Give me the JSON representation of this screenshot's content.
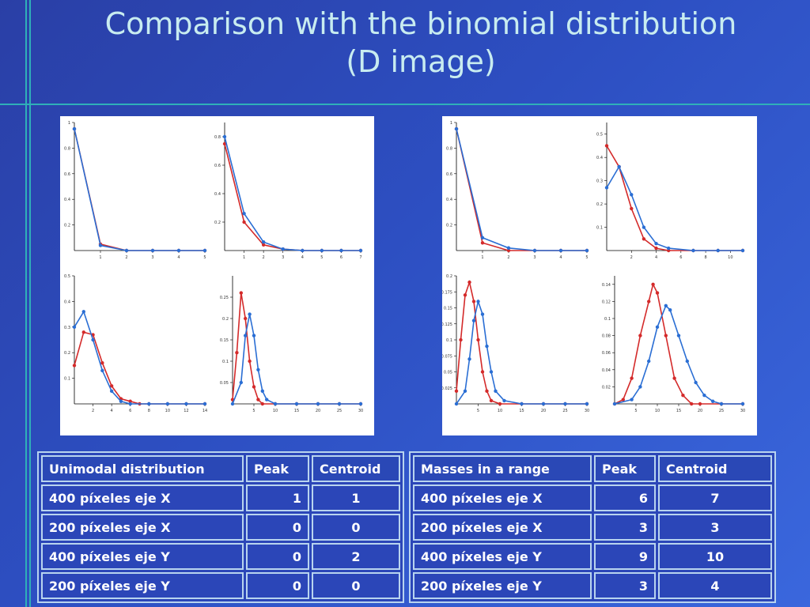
{
  "slide": {
    "title_line1": "Comparison with the binomial distribution",
    "title_line2": "(D image)"
  },
  "colors": {
    "binomial": "#d42a2a",
    "measured": "#2a6ed4"
  },
  "chart_data": [
    {
      "type": "line",
      "xticks": [
        "1",
        "2",
        "3",
        "4",
        "5"
      ],
      "yticks": [
        "0.2",
        "0.4",
        "0.6",
        "0.8",
        "1"
      ],
      "xlim": [
        0,
        5
      ],
      "ylim": [
        0,
        1
      ],
      "series": [
        {
          "values": [
            [
              0,
              0.95
            ],
            [
              1,
              0.05
            ],
            [
              2,
              0.0
            ],
            [
              3,
              0.0
            ],
            [
              4,
              0.0
            ],
            [
              5,
              0.0
            ]
          ]
        },
        {
          "values": [
            [
              0,
              0.95
            ],
            [
              1,
              0.04
            ],
            [
              2,
              0.0
            ],
            [
              3,
              0.0
            ],
            [
              4,
              0.0
            ],
            [
              5,
              0.0
            ]
          ]
        }
      ]
    },
    {
      "type": "line",
      "xticks": [
        "1",
        "2",
        "3",
        "4",
        "5",
        "6",
        "7"
      ],
      "yticks": [
        "0.2",
        "0.4",
        "0.6",
        "0.8"
      ],
      "xlim": [
        0,
        7
      ],
      "ylim": [
        0,
        0.9
      ],
      "series": [
        {
          "values": [
            [
              0,
              0.75
            ],
            [
              1,
              0.2
            ],
            [
              2,
              0.04
            ],
            [
              3,
              0.01
            ],
            [
              4,
              0
            ],
            [
              5,
              0
            ],
            [
              6,
              0
            ],
            [
              7,
              0
            ]
          ]
        },
        {
          "values": [
            [
              0,
              0.8
            ],
            [
              1,
              0.26
            ],
            [
              2,
              0.06
            ],
            [
              3,
              0.01
            ],
            [
              4,
              0
            ],
            [
              5,
              0
            ],
            [
              6,
              0
            ],
            [
              7,
              0
            ]
          ]
        }
      ]
    },
    {
      "type": "line",
      "xticks": [
        "2",
        "4",
        "6",
        "8",
        "10",
        "12",
        "14"
      ],
      "yticks": [
        "0.1",
        "0.2",
        "0.3",
        "0.4",
        "0.5"
      ],
      "xlim": [
        0,
        14
      ],
      "ylim": [
        0,
        0.5
      ],
      "series": [
        {
          "values": [
            [
              0,
              0.15
            ],
            [
              1,
              0.28
            ],
            [
              2,
              0.27
            ],
            [
              3,
              0.16
            ],
            [
              4,
              0.07
            ],
            [
              5,
              0.02
            ],
            [
              6,
              0.01
            ],
            [
              7,
              0
            ],
            [
              8,
              0
            ],
            [
              10,
              0
            ],
            [
              12,
              0
            ],
            [
              14,
              0
            ]
          ]
        },
        {
          "values": [
            [
              0,
              0.3
            ],
            [
              1,
              0.36
            ],
            [
              2,
              0.25
            ],
            [
              3,
              0.13
            ],
            [
              4,
              0.05
            ],
            [
              5,
              0.01
            ],
            [
              6,
              0
            ],
            [
              8,
              0
            ],
            [
              10,
              0
            ],
            [
              12,
              0
            ],
            [
              14,
              0
            ]
          ]
        }
      ]
    },
    {
      "type": "line",
      "xticks": [
        "5",
        "10",
        "15",
        "20",
        "25",
        "30"
      ],
      "yticks": [
        "0.05",
        "0.1",
        "0.15",
        "0.2",
        "0.25"
      ],
      "xlim": [
        0,
        30
      ],
      "ylim": [
        0,
        0.3
      ],
      "series": [
        {
          "values": [
            [
              0,
              0.01
            ],
            [
              1,
              0.12
            ],
            [
              2,
              0.26
            ],
            [
              3,
              0.2
            ],
            [
              4,
              0.1
            ],
            [
              5,
              0.04
            ],
            [
              6,
              0.01
            ],
            [
              7,
              0
            ],
            [
              10,
              0
            ],
            [
              15,
              0
            ],
            [
              20,
              0
            ],
            [
              25,
              0
            ],
            [
              30,
              0
            ]
          ]
        },
        {
          "values": [
            [
              0,
              0
            ],
            [
              2,
              0.05
            ],
            [
              3,
              0.16
            ],
            [
              4,
              0.21
            ],
            [
              5,
              0.16
            ],
            [
              6,
              0.08
            ],
            [
              7,
              0.03
            ],
            [
              8,
              0.01
            ],
            [
              10,
              0
            ],
            [
              15,
              0
            ],
            [
              20,
              0
            ],
            [
              25,
              0
            ],
            [
              30,
              0
            ]
          ]
        }
      ]
    },
    {
      "type": "line",
      "xticks": [
        "1",
        "2",
        "3",
        "4",
        "5"
      ],
      "yticks": [
        "0.2",
        "0.4",
        "0.6",
        "0.8",
        "1"
      ],
      "xlim": [
        0,
        5
      ],
      "ylim": [
        0,
        1
      ],
      "series": [
        {
          "values": [
            [
              0,
              0.95
            ],
            [
              1,
              0.06
            ],
            [
              2,
              0.0
            ],
            [
              3,
              0
            ],
            [
              4,
              0
            ],
            [
              5,
              0
            ]
          ]
        },
        {
          "values": [
            [
              0,
              0.95
            ],
            [
              1,
              0.1
            ],
            [
              2,
              0.02
            ],
            [
              3,
              0
            ],
            [
              4,
              0
            ],
            [
              5,
              0
            ]
          ]
        }
      ]
    },
    {
      "type": "line",
      "xticks": [
        "2",
        "4",
        "6",
        "8",
        "10"
      ],
      "yticks": [
        "0.1",
        "0.2",
        "0.3",
        "0.4",
        "0.5"
      ],
      "xlim": [
        0,
        11
      ],
      "ylim": [
        0,
        0.55
      ],
      "series": [
        {
          "values": [
            [
              0,
              0.45
            ],
            [
              1,
              0.36
            ],
            [
              2,
              0.18
            ],
            [
              3,
              0.05
            ],
            [
              4,
              0.01
            ],
            [
              5,
              0
            ],
            [
              7,
              0
            ],
            [
              9,
              0
            ],
            [
              11,
              0
            ]
          ]
        },
        {
          "values": [
            [
              0,
              0.27
            ],
            [
              1,
              0.36
            ],
            [
              2,
              0.24
            ],
            [
              3,
              0.1
            ],
            [
              4,
              0.03
            ],
            [
              5,
              0.01
            ],
            [
              7,
              0
            ],
            [
              9,
              0
            ],
            [
              11,
              0
            ]
          ]
        }
      ]
    },
    {
      "type": "line",
      "xticks": [
        "5",
        "10",
        "15",
        "20",
        "25",
        "30"
      ],
      "yticks": [
        "0.025",
        "0.05",
        "0.075",
        "0.1",
        "0.125",
        "0.15",
        "0.175",
        "0.2"
      ],
      "xlim": [
        0,
        30
      ],
      "ylim": [
        0,
        0.2
      ],
      "series": [
        {
          "values": [
            [
              0,
              0.02
            ],
            [
              1,
              0.1
            ],
            [
              2,
              0.17
            ],
            [
              3,
              0.19
            ],
            [
              4,
              0.16
            ],
            [
              5,
              0.1
            ],
            [
              6,
              0.05
            ],
            [
              7,
              0.02
            ],
            [
              8,
              0.005
            ],
            [
              10,
              0
            ],
            [
              15,
              0
            ],
            [
              20,
              0
            ],
            [
              25,
              0
            ],
            [
              30,
              0
            ]
          ]
        },
        {
          "values": [
            [
              0,
              0
            ],
            [
              2,
              0.02
            ],
            [
              3,
              0.07
            ],
            [
              4,
              0.13
            ],
            [
              5,
              0.16
            ],
            [
              6,
              0.14
            ],
            [
              7,
              0.09
            ],
            [
              8,
              0.05
            ],
            [
              9,
              0.02
            ],
            [
              11,
              0.005
            ],
            [
              15,
              0
            ],
            [
              20,
              0
            ],
            [
              25,
              0
            ],
            [
              30,
              0
            ]
          ]
        }
      ]
    },
    {
      "type": "line",
      "xticks": [
        "5",
        "10",
        "15",
        "20",
        "25",
        "30"
      ],
      "yticks": [
        "0.02",
        "0.04",
        "0.06",
        "0.08",
        "0.1",
        "0.12",
        "0.14"
      ],
      "xlim": [
        0,
        30
      ],
      "ylim": [
        0,
        0.15
      ],
      "series": [
        {
          "values": [
            [
              0,
              0
            ],
            [
              2,
              0.005
            ],
            [
              4,
              0.03
            ],
            [
              6,
              0.08
            ],
            [
              8,
              0.12
            ],
            [
              9,
              0.14
            ],
            [
              10,
              0.13
            ],
            [
              12,
              0.08
            ],
            [
              14,
              0.03
            ],
            [
              16,
              0.01
            ],
            [
              18,
              0
            ],
            [
              20,
              0
            ],
            [
              25,
              0
            ],
            [
              30,
              0
            ]
          ]
        },
        {
          "values": [
            [
              0,
              0
            ],
            [
              4,
              0.005
            ],
            [
              6,
              0.02
            ],
            [
              8,
              0.05
            ],
            [
              10,
              0.09
            ],
            [
              12,
              0.115
            ],
            [
              13,
              0.11
            ],
            [
              15,
              0.08
            ],
            [
              17,
              0.05
            ],
            [
              19,
              0.025
            ],
            [
              21,
              0.01
            ],
            [
              23,
              0.003
            ],
            [
              25,
              0
            ],
            [
              30,
              0
            ]
          ]
        }
      ]
    }
  ],
  "table_left": {
    "header": {
      "label": "Unimodal distribution",
      "peak": "Peak",
      "centroid": "Centroid"
    },
    "rows": [
      {
        "label": "400 píxeles eje X",
        "peak": "1",
        "centroid": "1"
      },
      {
        "label": "200 píxeles eje X",
        "peak": "0",
        "centroid": "0"
      },
      {
        "label": "400 píxeles eje Y",
        "peak": "0",
        "centroid": "2"
      },
      {
        "label": "200 píxeles eje Y",
        "peak": "0",
        "centroid": "0"
      }
    ]
  },
  "table_right": {
    "header": {
      "label": "Masses in a range",
      "peak": "Peak",
      "centroid": "Centroid"
    },
    "rows": [
      {
        "label": "400 píxeles eje X",
        "peak": "6",
        "centroid": "7"
      },
      {
        "label": "200 píxeles eje X",
        "peak": "3",
        "centroid": "3"
      },
      {
        "label": "400 píxeles eje Y",
        "peak": "9",
        "centroid": "10"
      },
      {
        "label": "200 píxeles eje Y",
        "peak": "3",
        "centroid": "4"
      }
    ]
  }
}
